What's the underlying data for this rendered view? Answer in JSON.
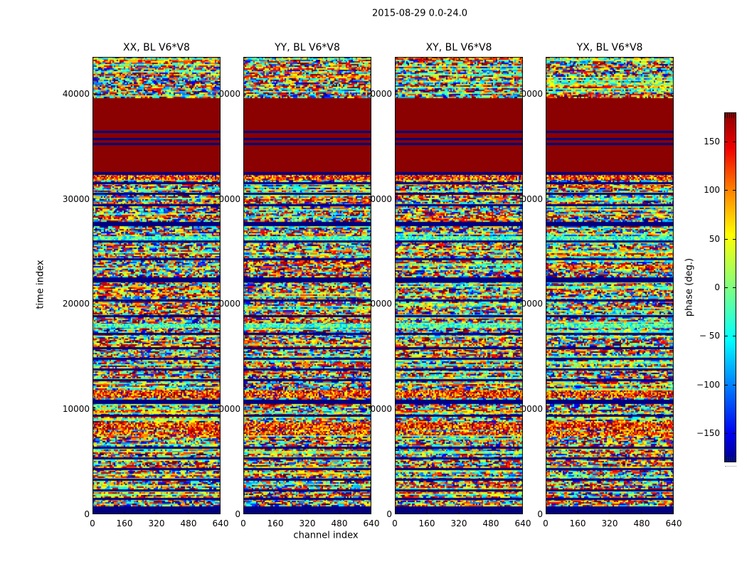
{
  "figure": {
    "title": "2015-08-29 0.0-24.0",
    "xlabel": "channel index",
    "ylabel": "time index",
    "background": "#ffffff"
  },
  "colorbar": {
    "label": "phase (deg.)",
    "ticks": [
      "150",
      "100",
      "50",
      "0",
      "− 50",
      "−100",
      "−150"
    ],
    "tick_values": [
      150,
      100,
      50,
      0,
      -50,
      -100,
      -150
    ],
    "vmin": -180,
    "vmax": 180,
    "gradient_bottom_to_top": [
      "#00008b",
      "#0000f0",
      "#0080ff",
      "#00ffff",
      "#80ff80",
      "#ffff00",
      "#ff8000",
      "#f00000",
      "#8b0000"
    ],
    "gradient_stops_pct": [
      0,
      8,
      22,
      35,
      50,
      65,
      78,
      90,
      100
    ]
  },
  "chart_data": {
    "type": "heatmap",
    "title": "2015-08-29 0.0-24.0",
    "xlabel": "channel index",
    "ylabel": "time index",
    "colorbar_label": "phase (deg.)",
    "colormap": "jet",
    "value_range_deg": [
      -180,
      180
    ],
    "x_range": [
      0,
      640
    ],
    "y_range": [
      0,
      43500
    ],
    "x_tick_labels": [
      "0",
      "160",
      "320",
      "480",
      "640"
    ],
    "x_tick_values": [
      0,
      160,
      320,
      480,
      640
    ],
    "y_tick_labels": [
      "0",
      "10000",
      "20000",
      "30000",
      "40000"
    ],
    "y_tick_values": [
      0,
      10000,
      20000,
      30000,
      40000
    ],
    "panels": [
      {
        "title": "XX, BL V6*V8",
        "seed": 101
      },
      {
        "title": "YY, BL V6*V8",
        "seed": 202
      },
      {
        "title": "XY, BL V6*V8",
        "seed": 303
      },
      {
        "title": "YX, BL V6*V8",
        "seed": 404
      }
    ],
    "description": "Four waterfall panels of interferometric visibility phase vs channel index (x) and time index (y); random-looking phase speckle broken by horizontal bands; a saturated +180 deg dark-red block spans time ~32500-39600 crossed by three thin navy lines; solid navy band at bottom (time 0-750); many thin navy and orange noise rows repeat identically in all panels.",
    "bands_time_type": [
      [
        0,
        745,
        "n"
      ],
      [
        1355,
        1560,
        "n"
      ],
      [
        2165,
        2370,
        "n"
      ],
      [
        3180,
        3385,
        "n"
      ],
      [
        4195,
        4400,
        "n"
      ],
      [
        5210,
        5415,
        "n"
      ],
      [
        6225,
        6430,
        "n"
      ],
      [
        7640,
        7850,
        "o"
      ],
      [
        8185,
        8660,
        "o"
      ],
      [
        9270,
        9470,
        "n"
      ],
      [
        10485,
        10895,
        "n"
      ],
      [
        11160,
        11705,
        "o"
      ],
      [
        12650,
        12855,
        "n"
      ],
      [
        13665,
        13870,
        "n"
      ],
      [
        14680,
        14885,
        "n"
      ],
      [
        15695,
        15900,
        "n"
      ],
      [
        17050,
        17255,
        "n"
      ],
      [
        17800,
        18130,
        "c"
      ],
      [
        18740,
        18945,
        "n"
      ],
      [
        20230,
        20435,
        "n"
      ],
      [
        22050,
        22530,
        "n"
      ],
      [
        24155,
        24360,
        "n"
      ],
      [
        25845,
        26050,
        "n"
      ],
      [
        26050,
        26400,
        "c"
      ],
      [
        27400,
        27810,
        "n"
      ],
      [
        29295,
        29500,
        "n"
      ],
      [
        30375,
        30580,
        "n"
      ],
      [
        31390,
        31595,
        "n"
      ],
      [
        31860,
        32270,
        "o"
      ],
      [
        32270,
        32540,
        "n"
      ],
      [
        32540,
        39575,
        "r"
      ],
      [
        35115,
        35320,
        "n"
      ],
      [
        35590,
        35790,
        "n"
      ],
      [
        36265,
        36465,
        "n"
      ]
    ],
    "band_colors": {
      "n": "#000080",
      "r": "#8b0000"
    },
    "speckle_palette": [
      "#00008f",
      "#0000ff",
      "#0040ff",
      "#0080ff",
      "#00bfff",
      "#00ffff",
      "#40ffbf",
      "#80ff80",
      "#bfff40",
      "#ffff00",
      "#ffbf00",
      "#ff8000",
      "#ff4000",
      "#ff0000",
      "#bf0000",
      "#800000"
    ]
  }
}
